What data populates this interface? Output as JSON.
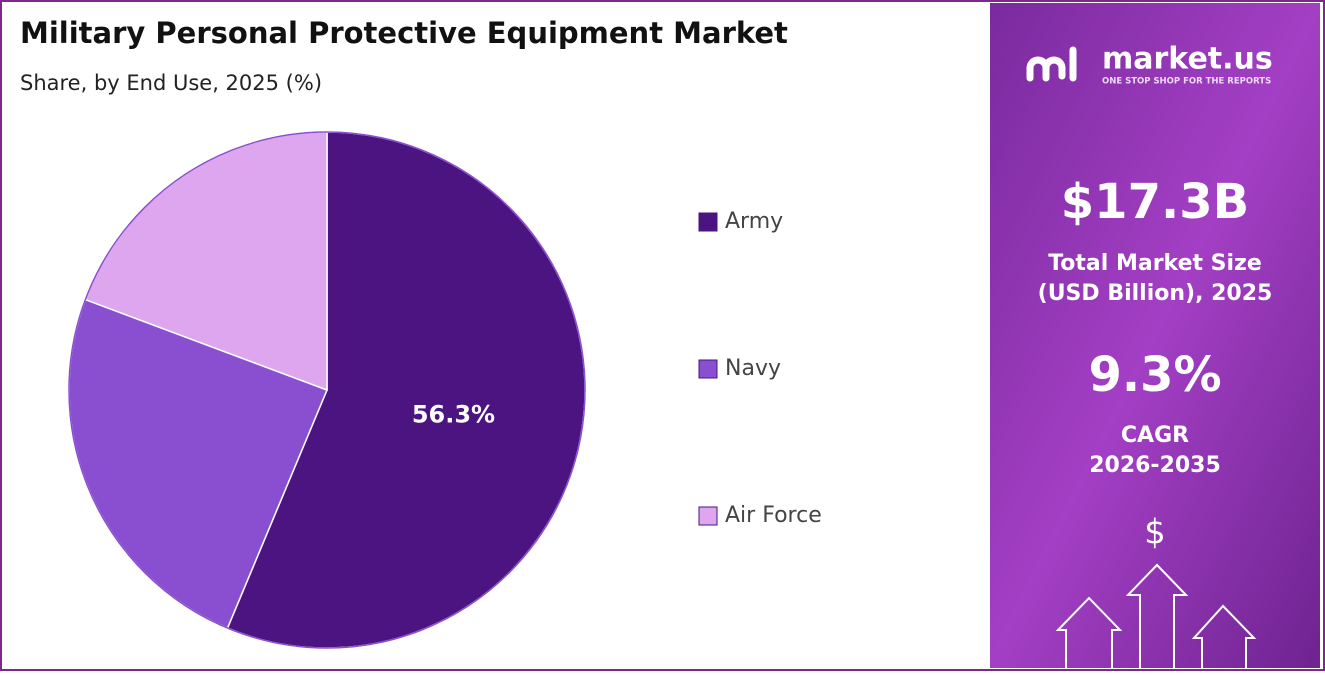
{
  "chart_data": {
    "type": "pie",
    "title": "Military Personal Protective Equipment Market",
    "subtitle": "Share, by End Use, 2025 (%)",
    "categories": [
      "Army",
      "Navy",
      "Air Force"
    ],
    "values": [
      56.3,
      24.4,
      19.3
    ],
    "value_labels": [
      "56.3%",
      null,
      null
    ],
    "colors": [
      "#4b1480",
      "#8a4fd0",
      "#dda6ee"
    ],
    "legend": "right"
  },
  "side_panel": {
    "brand": "market.us",
    "tagline": "ONE STOP SHOP FOR THE REPORTS",
    "market_size": "$17.3B",
    "market_size_label": [
      "Total Market Size",
      "(USD Billion), 2025"
    ],
    "cagr": "9.3%",
    "cagr_label": [
      "CAGR",
      "2026-2035"
    ],
    "icon_text": "$"
  }
}
